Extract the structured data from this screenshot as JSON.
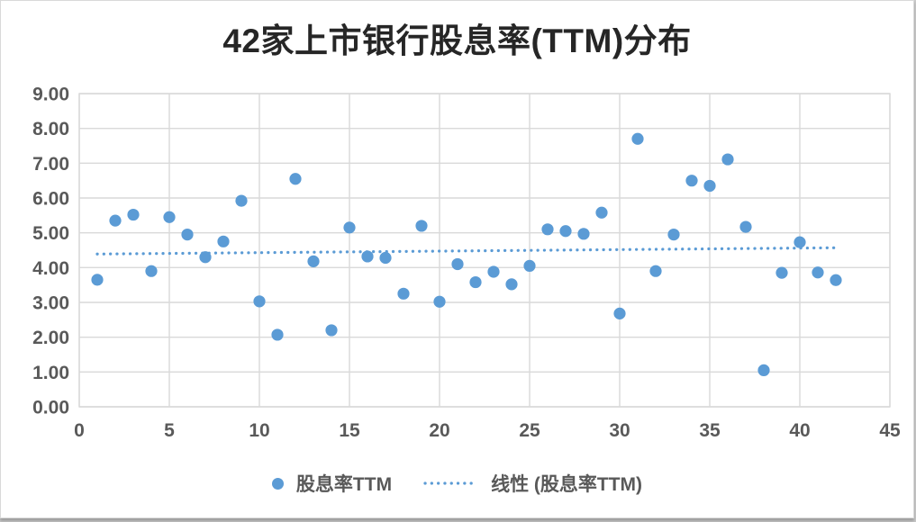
{
  "colors": {
    "point": "#5B9BD5",
    "trend": "#5B9BD5",
    "grid": "#D9D9D9",
    "axis_text": "#595959",
    "title_text": "#262626",
    "canvas_border": "#D9D9D9",
    "background": "#FFFFFF"
  },
  "chart_data": {
    "type": "scatter",
    "title": "42家上市银行股息率(TTM)分布",
    "series_name": "股息率TTM",
    "x": [
      1,
      2,
      3,
      4,
      5,
      6,
      7,
      8,
      9,
      10,
      11,
      12,
      13,
      14,
      15,
      16,
      17,
      18,
      19,
      20,
      21,
      22,
      23,
      24,
      25,
      26,
      27,
      28,
      29,
      30,
      31,
      32,
      33,
      34,
      35,
      36,
      37,
      38,
      39,
      40,
      41,
      42
    ],
    "y": [
      3.65,
      5.35,
      5.52,
      3.9,
      5.45,
      4.95,
      4.3,
      4.75,
      5.92,
      3.03,
      2.07,
      6.55,
      4.18,
      2.2,
      5.15,
      4.32,
      4.28,
      3.25,
      5.2,
      3.02,
      4.1,
      3.58,
      3.88,
      3.52,
      4.05,
      5.1,
      5.05,
      4.97,
      5.58,
      2.68,
      7.7,
      3.9,
      4.95,
      6.5,
      6.35,
      7.11,
      5.17,
      1.05,
      3.85,
      4.73,
      3.86,
      3.64
    ],
    "trendline": {
      "label": "线性 (股息率TTM)",
      "style": "dotted",
      "x_start": 1,
      "y_start": 4.39,
      "x_end": 42,
      "y_end": 4.57
    },
    "xlim": [
      0,
      45
    ],
    "ylim": [
      0,
      9
    ],
    "x_ticks": [
      0,
      5,
      10,
      15,
      20,
      25,
      30,
      35,
      40,
      45
    ],
    "y_ticks": [
      0,
      1,
      2,
      3,
      4,
      5,
      6,
      7,
      8,
      9
    ],
    "y_tick_labels": [
      "0.00",
      "1.00",
      "2.00",
      "3.00",
      "4.00",
      "5.00",
      "6.00",
      "7.00",
      "8.00",
      "9.00"
    ],
    "grid": true,
    "legend_position": "bottom"
  }
}
